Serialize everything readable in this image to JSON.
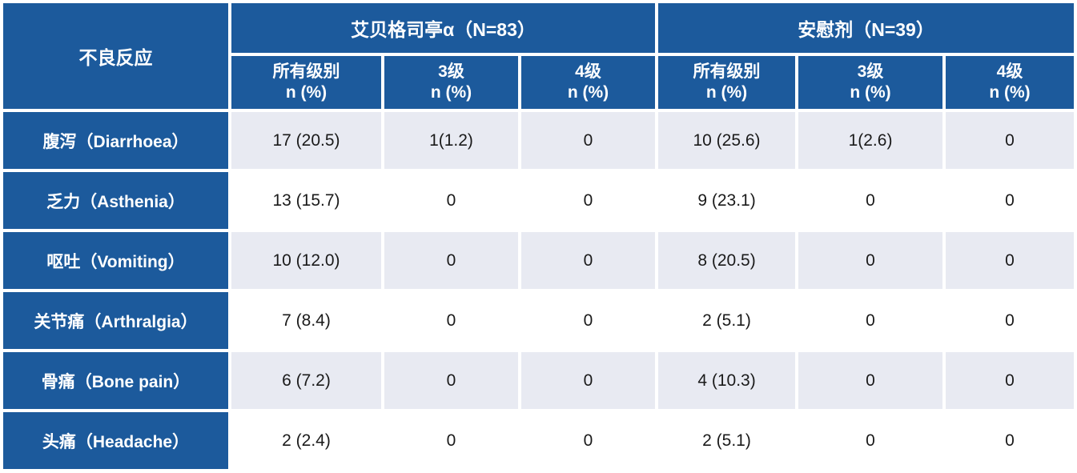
{
  "colors": {
    "header_blue": "#1c5a9c",
    "row_shaded": "#e8eaf2",
    "row_plain": "#ffffff",
    "data_text": "#1a1a1a",
    "header_text": "#ffffff"
  },
  "chart_data": {
    "type": "table",
    "corner_header": "不良反应",
    "groups": [
      {
        "label": "艾贝格司亭α（N=83）",
        "subcolumns": [
          {
            "line1": "所有级别",
            "line2": "n (%)"
          },
          {
            "line1": "3级",
            "line2": "n (%)"
          },
          {
            "line1": "4级",
            "line2": "n (%)"
          }
        ]
      },
      {
        "label": "安慰剂（N=39）",
        "subcolumns": [
          {
            "line1": "所有级别",
            "line2": "n (%)"
          },
          {
            "line1": "3级",
            "line2": "n (%)"
          },
          {
            "line1": "4级",
            "line2": "n (%)"
          }
        ]
      }
    ],
    "rows": [
      {
        "label": "腹泻（Diarrhoea）",
        "values": [
          "17 (20.5)",
          "1(1.2)",
          "0",
          "10 (25.6)",
          "1(2.6)",
          "0"
        ]
      },
      {
        "label": "乏力（Asthenia）",
        "values": [
          "13 (15.7)",
          "0",
          "0",
          "9 (23.1)",
          "0",
          "0"
        ]
      },
      {
        "label": "呕吐（Vomiting）",
        "values": [
          "10 (12.0)",
          "0",
          "0",
          "8 (20.5)",
          "0",
          "0"
        ]
      },
      {
        "label": "关节痛（Arthralgia）",
        "values": [
          "7 (8.4)",
          "0",
          "0",
          "2 (5.1)",
          "0",
          "0"
        ]
      },
      {
        "label": "骨痛（Bone pain）",
        "values": [
          "6 (7.2)",
          "0",
          "0",
          "4 (10.3)",
          "0",
          "0"
        ]
      },
      {
        "label": "头痛（Headache）",
        "values": [
          "2 (2.4)",
          "0",
          "0",
          "2 (5.1)",
          "0",
          "0"
        ]
      }
    ]
  }
}
